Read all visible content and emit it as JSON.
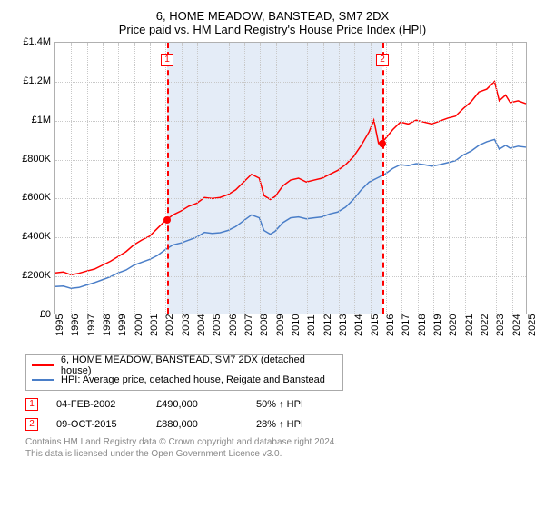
{
  "title": "6, HOME MEADOW, BANSTEAD, SM7 2DX",
  "subtitle": "Price paid vs. HM Land Registry's House Price Index (HPI)",
  "chart": {
    "type": "line",
    "background_color": "#ffffff",
    "grid_color": "#c8c8c8",
    "border_color": "#b0b0b0",
    "y": {
      "min": 0,
      "max": 1400000,
      "ticks": [
        0,
        200000,
        400000,
        600000,
        800000,
        1000000,
        1200000,
        1400000
      ],
      "tick_labels": [
        "£0",
        "£200K",
        "£400K",
        "£600K",
        "£800K",
        "£1M",
        "£1.2M",
        "£1.4M"
      ],
      "fontsize": 11
    },
    "x": {
      "min": 1995,
      "max": 2025,
      "ticks": [
        1995,
        1996,
        1997,
        1998,
        1999,
        2000,
        2001,
        2002,
        2003,
        2004,
        2005,
        2006,
        2007,
        2008,
        2009,
        2010,
        2011,
        2012,
        2013,
        2014,
        2015,
        2016,
        2017,
        2018,
        2019,
        2020,
        2021,
        2022,
        2023,
        2024,
        2025
      ],
      "fontsize": 11
    },
    "shade": {
      "start": 2002.1,
      "end": 2015.77,
      "color": "#e4ecf7"
    },
    "markers": [
      {
        "label": "1",
        "x": 2002.1,
        "y": 490000
      },
      {
        "label": "2",
        "x": 2015.77,
        "y": 880000
      }
    ],
    "series": [
      {
        "name": "6, HOME MEADOW, BANSTEAD, SM7 2DX (detached house)",
        "color": "#ff0000",
        "line_width": 1.5,
        "points": [
          [
            1995,
            210000
          ],
          [
            1995.5,
            215000
          ],
          [
            1996,
            200000
          ],
          [
            1996.5,
            208000
          ],
          [
            1997,
            220000
          ],
          [
            1997.5,
            230000
          ],
          [
            1998,
            250000
          ],
          [
            1998.5,
            270000
          ],
          [
            1999,
            295000
          ],
          [
            1999.5,
            320000
          ],
          [
            2000,
            355000
          ],
          [
            2000.5,
            380000
          ],
          [
            2001,
            400000
          ],
          [
            2001.5,
            440000
          ],
          [
            2002,
            480000
          ],
          [
            2002.5,
            510000
          ],
          [
            2003,
            530000
          ],
          [
            2003.5,
            555000
          ],
          [
            2004,
            570000
          ],
          [
            2004.5,
            600000
          ],
          [
            2005,
            595000
          ],
          [
            2005.5,
            600000
          ],
          [
            2006,
            615000
          ],
          [
            2006.5,
            640000
          ],
          [
            2007,
            680000
          ],
          [
            2007.5,
            720000
          ],
          [
            2008,
            700000
          ],
          [
            2008.3,
            610000
          ],
          [
            2008.7,
            590000
          ],
          [
            2009,
            605000
          ],
          [
            2009.5,
            660000
          ],
          [
            2010,
            690000
          ],
          [
            2010.5,
            700000
          ],
          [
            2011,
            680000
          ],
          [
            2011.5,
            690000
          ],
          [
            2012,
            700000
          ],
          [
            2012.5,
            720000
          ],
          [
            2013,
            740000
          ],
          [
            2013.5,
            770000
          ],
          [
            2014,
            810000
          ],
          [
            2014.5,
            870000
          ],
          [
            2015,
            940000
          ],
          [
            2015.3,
            1000000
          ],
          [
            2015.6,
            880000
          ],
          [
            2016,
            900000
          ],
          [
            2016.5,
            950000
          ],
          [
            2017,
            990000
          ],
          [
            2017.5,
            980000
          ],
          [
            2018,
            1000000
          ],
          [
            2018.5,
            990000
          ],
          [
            2019,
            980000
          ],
          [
            2019.5,
            995000
          ],
          [
            2020,
            1010000
          ],
          [
            2020.5,
            1020000
          ],
          [
            2021,
            1060000
          ],
          [
            2021.5,
            1095000
          ],
          [
            2022,
            1145000
          ],
          [
            2022.5,
            1160000
          ],
          [
            2023,
            1200000
          ],
          [
            2023.3,
            1100000
          ],
          [
            2023.7,
            1130000
          ],
          [
            2024,
            1090000
          ],
          [
            2024.5,
            1100000
          ],
          [
            2025,
            1085000
          ]
        ]
      },
      {
        "name": "HPI: Average price, detached house, Reigate and Banstead",
        "color": "#4a7ec8",
        "line_width": 1.5,
        "points": [
          [
            1995,
            140000
          ],
          [
            1995.5,
            142000
          ],
          [
            1996,
            130000
          ],
          [
            1996.5,
            135000
          ],
          [
            1997,
            148000
          ],
          [
            1997.5,
            160000
          ],
          [
            1998,
            175000
          ],
          [
            1998.5,
            190000
          ],
          [
            1999,
            210000
          ],
          [
            1999.5,
            225000
          ],
          [
            2000,
            250000
          ],
          [
            2000.5,
            265000
          ],
          [
            2001,
            280000
          ],
          [
            2001.5,
            300000
          ],
          [
            2002,
            330000
          ],
          [
            2002.5,
            355000
          ],
          [
            2003,
            365000
          ],
          [
            2003.5,
            380000
          ],
          [
            2004,
            395000
          ],
          [
            2004.5,
            420000
          ],
          [
            2005,
            415000
          ],
          [
            2005.5,
            418000
          ],
          [
            2006,
            430000
          ],
          [
            2006.5,
            450000
          ],
          [
            2007,
            480000
          ],
          [
            2007.5,
            510000
          ],
          [
            2008,
            495000
          ],
          [
            2008.3,
            430000
          ],
          [
            2008.7,
            410000
          ],
          [
            2009,
            425000
          ],
          [
            2009.5,
            470000
          ],
          [
            2010,
            495000
          ],
          [
            2010.5,
            500000
          ],
          [
            2011,
            490000
          ],
          [
            2011.5,
            495000
          ],
          [
            2012,
            500000
          ],
          [
            2012.5,
            515000
          ],
          [
            2013,
            525000
          ],
          [
            2013.5,
            550000
          ],
          [
            2014,
            590000
          ],
          [
            2014.5,
            640000
          ],
          [
            2015,
            680000
          ],
          [
            2015.5,
            700000
          ],
          [
            2016,
            720000
          ],
          [
            2016.5,
            750000
          ],
          [
            2017,
            770000
          ],
          [
            2017.5,
            765000
          ],
          [
            2018,
            775000
          ],
          [
            2018.5,
            770000
          ],
          [
            2019,
            762000
          ],
          [
            2019.5,
            770000
          ],
          [
            2020,
            780000
          ],
          [
            2020.5,
            790000
          ],
          [
            2021,
            820000
          ],
          [
            2021.5,
            840000
          ],
          [
            2022,
            870000
          ],
          [
            2022.5,
            888000
          ],
          [
            2023,
            900000
          ],
          [
            2023.3,
            850000
          ],
          [
            2023.7,
            870000
          ],
          [
            2024,
            855000
          ],
          [
            2024.5,
            865000
          ],
          [
            2025,
            860000
          ]
        ]
      }
    ]
  },
  "legend": {
    "items": [
      {
        "color": "#ff0000",
        "label": "6, HOME MEADOW, BANSTEAD, SM7 2DX (detached house)"
      },
      {
        "color": "#4a7ec8",
        "label": "HPI: Average price, detached house, Reigate and Banstead"
      }
    ]
  },
  "transactions": [
    {
      "n": "1",
      "date": "04-FEB-2002",
      "price": "£490,000",
      "hpi": "50% ↑ HPI"
    },
    {
      "n": "2",
      "date": "09-OCT-2015",
      "price": "£880,000",
      "hpi": "28% ↑ HPI"
    }
  ],
  "footer": {
    "line1": "Contains HM Land Registry data © Crown copyright and database right 2024.",
    "line2": "This data is licensed under the Open Government Licence v3.0."
  }
}
